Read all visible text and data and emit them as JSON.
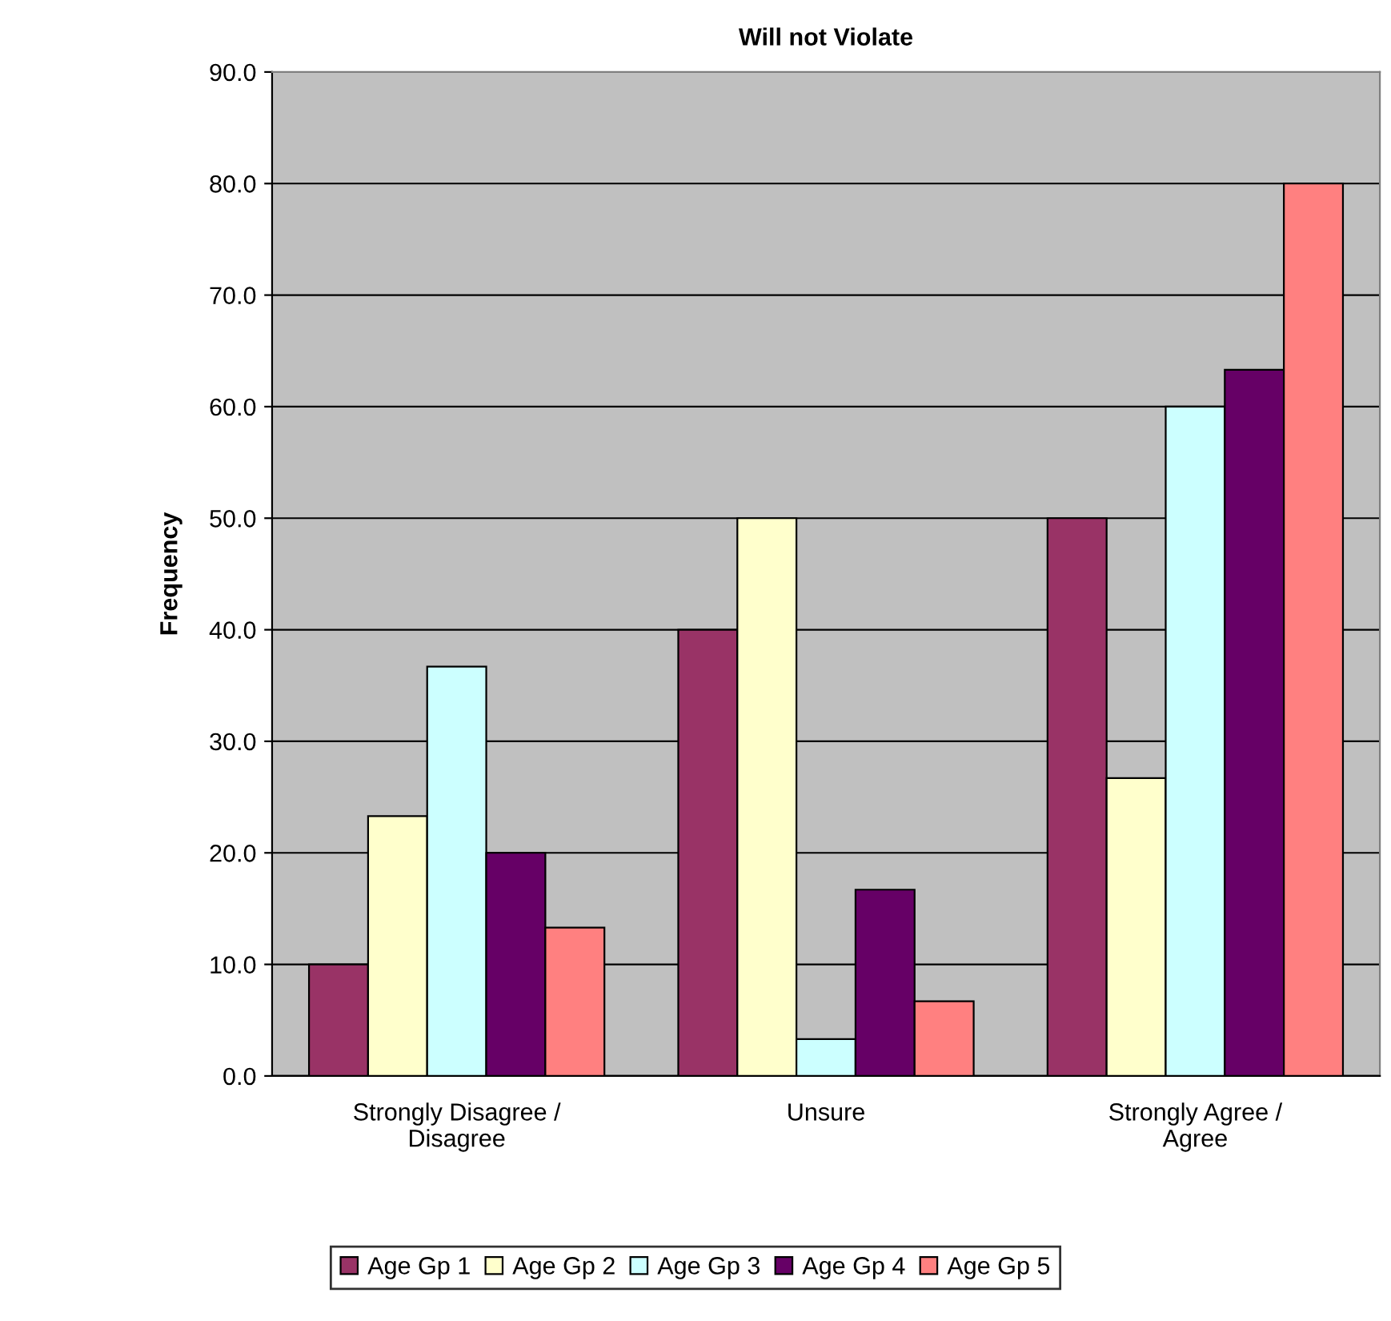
{
  "chart_data": {
    "type": "bar",
    "title": "Will not Violate",
    "ylabel": "Frequency",
    "categories": [
      "Strongly Disagree /\nDisagree",
      "Unsure",
      "Strongly Agree /\nAgree"
    ],
    "series": [
      {
        "name": "Age Gp 1",
        "color": "#993366",
        "values": [
          10.0,
          40.0,
          50.0
        ]
      },
      {
        "name": "Age Gp 2",
        "color": "#ffffcc",
        "values": [
          23.3,
          50.0,
          26.7
        ]
      },
      {
        "name": "Age Gp 3",
        "color": "#ccffff",
        "values": [
          36.7,
          3.3,
          60.0
        ]
      },
      {
        "name": "Age Gp 4",
        "color": "#660066",
        "values": [
          20.0,
          16.7,
          63.3
        ]
      },
      {
        "name": "Age Gp 5",
        "color": "#ff8080",
        "values": [
          13.3,
          6.7,
          80.0
        ]
      }
    ],
    "ylim": [
      0,
      90
    ],
    "yticks": [
      {
        "value": 0,
        "label": "0.0"
      },
      {
        "value": 10,
        "label": "10.0"
      },
      {
        "value": 20,
        "label": "20.0"
      },
      {
        "value": 30,
        "label": "30.0"
      },
      {
        "value": 40,
        "label": "40.0"
      },
      {
        "value": 50,
        "label": "50.0"
      },
      {
        "value": 60,
        "label": "60.0"
      },
      {
        "value": 70,
        "label": "70.0"
      },
      {
        "value": 80,
        "label": "80.0"
      },
      {
        "value": 90,
        "label": "90.0"
      }
    ],
    "grid": "y",
    "legend": "bottom"
  }
}
